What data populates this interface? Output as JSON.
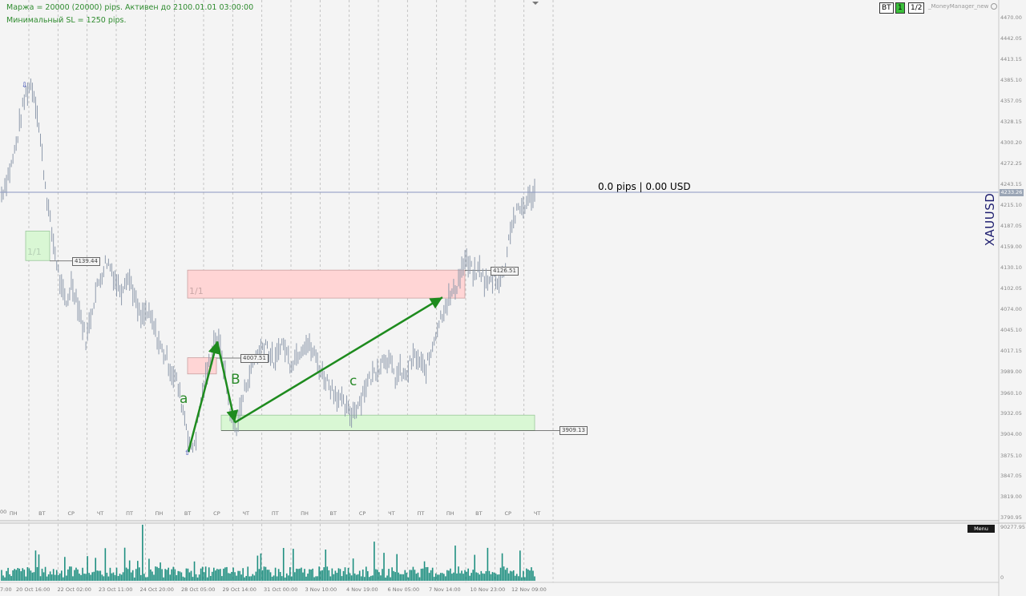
{
  "info": {
    "line1": "Маржа = 20000 (20000) pips. Активен до 2100.01.01 03:00:00",
    "line2": "Минимальный SL = 1250 pips."
  },
  "toolbar": {
    "bt": "BT",
    "one": "1",
    "half": "1/2",
    "ea": "_MoneyManager_new"
  },
  "pips_text": "0.0 pips | 0.00 USD",
  "symbol": "XAUUSD",
  "current_price": "4233.26",
  "menu_label": "Menu",
  "left_time_cut": "7:00",
  "left_day_cut": "00",
  "colors": {
    "bars": "#8e9aac",
    "green": "#1e8b1e",
    "volume": "#1e8f80",
    "zone_red": "#ffd5d5",
    "zone_green": "#d9f7d4",
    "price_line": "#8a96c0"
  },
  "chart_data": {
    "type": "candlestick",
    "symbol": "XAUUSD",
    "ylim": [
      3790.95,
      4470.0
    ],
    "price_ticks": [
      "4470.00",
      "4442.05",
      "4413.15",
      "4385.10",
      "4357.05",
      "4328.15",
      "4300.20",
      "4272.25",
      "4243.15",
      "4215.10",
      "4187.05",
      "4159.00",
      "4130.10",
      "4102.05",
      "4074.00",
      "4045.10",
      "4017.15",
      "3989.00",
      "3960.10",
      "3932.05",
      "3904.00",
      "3875.10",
      "3847.05",
      "3819.00",
      "3790.95"
    ],
    "day_labels": [
      "ПН",
      "ВТ",
      "СР",
      "ЧТ",
      "ПТ",
      "ПН",
      "ВТ",
      "СР",
      "ЧТ",
      "ПТ",
      "ПН",
      "ВТ",
      "СР",
      "ЧТ",
      "ПТ",
      "ПН",
      "ВТ",
      "СР",
      "ЧТ"
    ],
    "date_labels": [
      "20 Oct 16:00",
      "22 Oct 02:00",
      "23 Oct 11:00",
      "24 Oct 20:00",
      "28 Oct 05:00",
      "29 Oct 14:00",
      "31 Oct 00:00",
      "3 Nov 10:00",
      "4 Nov 19:00",
      "6 Nov 05:00",
      "7 Nov 14:00",
      "10 Nov 23:00",
      "12 Nov 09:00"
    ],
    "price_path": [
      4230,
      4250,
      4270,
      4300,
      4340,
      4370,
      4380,
      4350,
      4290,
      4230,
      4180,
      4140,
      4100,
      4080,
      4110,
      4090,
      4060,
      4030,
      4070,
      4100,
      4120,
      4140,
      4130,
      4110,
      4100,
      4120,
      4110,
      4080,
      4060,
      4070,
      4060,
      4040,
      4020,
      4010,
      3990,
      3980,
      3950,
      3920,
      3880,
      3900,
      3950,
      3980,
      4010,
      4040,
      4020,
      3980,
      3930,
      3910,
      3940,
      3970,
      3990,
      4010,
      4020,
      4030,
      4010,
      4000,
      4030,
      4020,
      4000,
      4010,
      4020,
      4030,
      4020,
      4010,
      3990,
      3980,
      3970,
      3960,
      3950,
      3940,
      3930,
      3940,
      3950,
      3970,
      3980,
      3990,
      4000,
      4010,
      4000,
      3980,
      3990,
      3980,
      4000,
      4010,
      4000,
      3990,
      4010,
      4040,
      4060,
      4080,
      4090,
      4100,
      4120,
      4140,
      4130,
      4120,
      4130,
      4110,
      4110,
      4120,
      4110,
      4130,
      4180,
      4200,
      4210,
      4215,
      4225,
      4233
    ],
    "volume_max": "90277.95",
    "volume_min": "0",
    "levels": [
      {
        "label": "4139.44",
        "price": 4139.44
      },
      {
        "label": "4007.51",
        "price": 4007.51
      },
      {
        "label": "4126.51",
        "price": 4126.51
      },
      {
        "label": "3909.13",
        "price": 3909.13
      }
    ],
    "zones": [
      {
        "kind": "red",
        "label": "1/1",
        "from": 4089,
        "to": 4127
      },
      {
        "kind": "green",
        "label": "1/1",
        "from": 4140,
        "to": 4180
      },
      {
        "kind": "red",
        "label": "",
        "from": 3986,
        "to": 4008
      },
      {
        "kind": "green",
        "label": "",
        "from": 3909,
        "to": 3930
      }
    ],
    "waves": [
      {
        "label": "a",
        "from_price": 3880,
        "to_price": 4030
      },
      {
        "label": "B",
        "from_price": 4030,
        "to_price": 3920
      },
      {
        "label": "c",
        "from_price": 3920,
        "to_price": 4090
      }
    ]
  }
}
